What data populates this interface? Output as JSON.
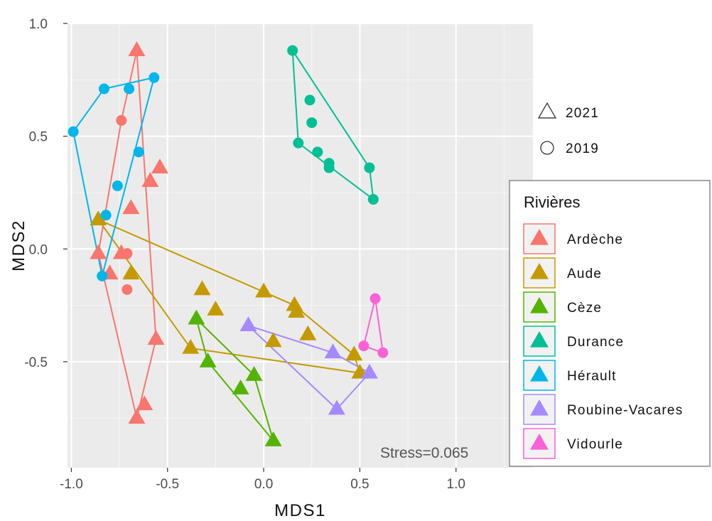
{
  "chart_data": {
    "type": "scatter",
    "xlabel": "MDS1",
    "ylabel": "MDS2",
    "xlim": [
      -1.02,
      1.4
    ],
    "ylim": [
      -0.97,
      1.0
    ],
    "xticks": [
      -1.0,
      -0.5,
      0.0,
      0.5,
      1.0
    ],
    "xtick_labels": [
      "-1.0",
      "-0.5",
      "0.0",
      "0.5",
      "1.0"
    ],
    "yticks": [
      -0.5,
      0.0,
      0.5,
      1.0
    ],
    "ytick_labels": [
      "-0.5",
      "0.0",
      "0.5",
      "1.0"
    ],
    "grid": true,
    "annotation": "Stress=0.065",
    "shape_legend": [
      {
        "label": "2021",
        "shape": "triangle"
      },
      {
        "label": "2019",
        "shape": "circle"
      }
    ],
    "legend_title": "Rivières",
    "legend_position": "right",
    "series": [
      {
        "name": "Ardèche",
        "color": "#F8766D",
        "triangles": [
          [
            -0.66,
            0.88
          ],
          [
            -0.54,
            0.36
          ],
          [
            -0.59,
            0.3
          ],
          [
            -0.69,
            0.18
          ],
          [
            -0.86,
            -0.02
          ],
          [
            -0.8,
            -0.11
          ],
          [
            -0.74,
            -0.02
          ],
          [
            -0.56,
            -0.4
          ],
          [
            -0.62,
            -0.69
          ],
          [
            -0.66,
            -0.75
          ]
        ],
        "circles": [
          [
            -0.74,
            0.57
          ],
          [
            -0.71,
            -0.02
          ],
          [
            -0.71,
            -0.18
          ]
        ],
        "hull": [
          [
            -0.66,
            0.88
          ],
          [
            -0.56,
            -0.4
          ],
          [
            -0.66,
            -0.75
          ],
          [
            -0.86,
            -0.02
          ],
          [
            -0.74,
            0.57
          ]
        ]
      },
      {
        "name": "Aude",
        "color": "#C49A00",
        "triangles": [
          [
            -0.86,
            0.13
          ],
          [
            -0.69,
            -0.11
          ],
          [
            -0.38,
            -0.44
          ],
          [
            -0.32,
            -0.18
          ],
          [
            -0.25,
            -0.27
          ],
          [
            0.0,
            -0.19
          ],
          [
            0.05,
            -0.41
          ],
          [
            0.16,
            -0.25
          ],
          [
            0.17,
            -0.28
          ],
          [
            0.23,
            -0.38
          ],
          [
            0.47,
            -0.47
          ],
          [
            0.5,
            -0.55
          ]
        ],
        "circles": [],
        "hull": [
          [
            -0.86,
            0.13
          ],
          [
            0.16,
            -0.25
          ],
          [
            0.47,
            -0.47
          ],
          [
            0.5,
            -0.55
          ],
          [
            -0.38,
            -0.44
          ]
        ]
      },
      {
        "name": "Cèze",
        "color": "#53B400",
        "triangles": [
          [
            -0.35,
            -0.31
          ],
          [
            -0.29,
            -0.5
          ],
          [
            -0.12,
            -0.62
          ],
          [
            -0.05,
            -0.56
          ],
          [
            0.05,
            -0.85
          ]
        ],
        "circles": [],
        "hull": [
          [
            -0.35,
            -0.31
          ],
          [
            -0.05,
            -0.56
          ],
          [
            0.05,
            -0.85
          ],
          [
            -0.29,
            -0.5
          ]
        ]
      },
      {
        "name": "Durance",
        "color": "#00C094",
        "triangles": [],
        "circles": [
          [
            0.15,
            0.88
          ],
          [
            0.24,
            0.66
          ],
          [
            0.25,
            0.56
          ],
          [
            0.18,
            0.47
          ],
          [
            0.28,
            0.43
          ],
          [
            0.34,
            0.38
          ],
          [
            0.34,
            0.36
          ],
          [
            0.55,
            0.36
          ],
          [
            0.57,
            0.22
          ]
        ],
        "hull": [
          [
            0.15,
            0.88
          ],
          [
            0.55,
            0.36
          ],
          [
            0.57,
            0.22
          ],
          [
            0.18,
            0.47
          ]
        ]
      },
      {
        "name": "Hérault",
        "color": "#00B6EB",
        "triangles": [],
        "circles": [
          [
            -0.57,
            0.76
          ],
          [
            -0.83,
            0.71
          ],
          [
            -0.7,
            0.71
          ],
          [
            -0.99,
            0.52
          ],
          [
            -0.65,
            0.43
          ],
          [
            -0.76,
            0.28
          ],
          [
            -0.82,
            0.15
          ],
          [
            -0.84,
            -0.12
          ]
        ],
        "hull": [
          [
            -0.57,
            0.76
          ],
          [
            -0.84,
            -0.12
          ],
          [
            -0.99,
            0.52
          ],
          [
            -0.83,
            0.71
          ]
        ]
      },
      {
        "name": "Roubine-Vacares",
        "color": "#A58AFF",
        "triangles": [
          [
            -0.08,
            -0.34
          ],
          [
            0.36,
            -0.46
          ],
          [
            0.38,
            -0.71
          ],
          [
            0.55,
            -0.55
          ]
        ],
        "circles": [],
        "hull": [
          [
            -0.08,
            -0.34
          ],
          [
            0.36,
            -0.46
          ],
          [
            0.55,
            -0.55
          ],
          [
            0.38,
            -0.71
          ]
        ]
      },
      {
        "name": "Vidourle",
        "color": "#FB61D7",
        "triangles": [],
        "circles": [
          [
            0.58,
            -0.22
          ],
          [
            0.52,
            -0.43
          ],
          [
            0.62,
            -0.46
          ]
        ],
        "hull": [
          [
            0.58,
            -0.22
          ],
          [
            0.62,
            -0.46
          ],
          [
            0.52,
            -0.43
          ]
        ]
      }
    ]
  }
}
